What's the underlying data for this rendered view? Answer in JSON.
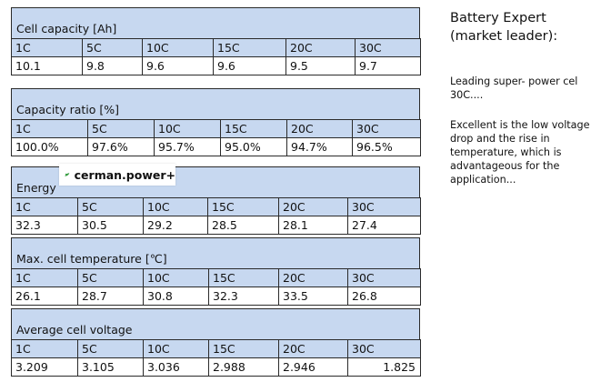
{
  "sections": [
    {
      "title": "Cell capacity [Ah]",
      "headers": [
        "1C",
        "5C",
        "10C",
        "15C",
        "20C",
        "30C"
      ],
      "values": [
        "10.1",
        "9.8",
        "9.6",
        "9.6",
        "9.5",
        "9.7"
      ]
    },
    {
      "title": "Capacity ratio [%]",
      "headers": [
        "1C",
        "5C",
        "10C",
        "15C",
        "20C",
        "30C"
      ],
      "values": [
        "100.0%",
        "97.6%",
        "95.7%",
        "95.0%",
        "94.7%",
        "96.5%"
      ]
    },
    {
      "title": "Energy",
      "headers": [
        "1C",
        "5C",
        "10C",
        "15C",
        "20C",
        "30C"
      ],
      "values": [
        "32.3",
        "30.5",
        "29.2",
        "28.5",
        "28.1",
        "27.4"
      ]
    },
    {
      "title": "Max. cell temperature [℃]",
      "headers": [
        "1C",
        "5C",
        "10C",
        "15C",
        "20C",
        "30C"
      ],
      "values": [
        "26.1",
        "28.7",
        "30.8",
        "32.3",
        "33.5",
        "26.8"
      ]
    },
    {
      "title": "Average cell voltage",
      "headers": [
        "1C",
        "5C",
        "10C",
        "15C",
        "20C",
        "30C"
      ],
      "values": [
        "3.209",
        "3.105",
        "3.036",
        "2.988",
        "2.946",
        "1.825"
      ]
    }
  ],
  "logo": {
    "text": "cerman.power+",
    "icon": "leaf-logo-icon",
    "color": "#2f9a3a"
  },
  "side": {
    "title": "Battery Expert (market leader):",
    "paragraphs": [
      "Leading super- power cel 30C....",
      "Excellent is the low voltage drop and the rise in temperature, which is advantageous for the application..."
    ]
  }
}
